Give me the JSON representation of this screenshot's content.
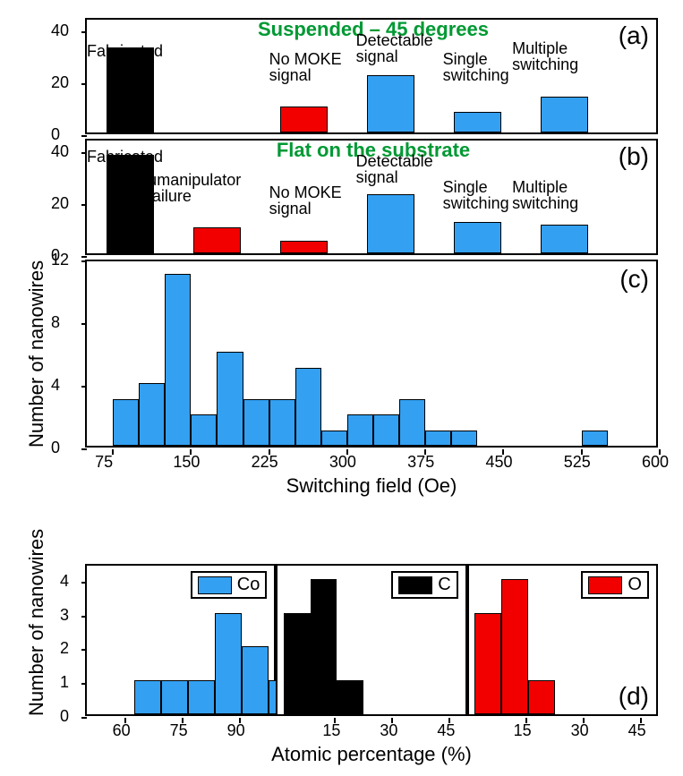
{
  "colors": {
    "blue": "#33a0f2",
    "black": "#000000",
    "red": "#f20000",
    "title_green": "#009933",
    "bg": "#ffffff"
  },
  "shared_ylabel": "Number of nanowires",
  "panel_a": {
    "title": "Suspended – 45 degrees",
    "letter": "(a)",
    "ylim": [
      0,
      45
    ],
    "yticks": [
      0,
      20,
      40
    ],
    "bars": [
      {
        "label": "Fabricated",
        "value": 33,
        "color": "black",
        "x": 1,
        "lx": 0.5,
        "ly": 36
      },
      {
        "label": "No MOKE\nsignal",
        "value": 10,
        "color": "red",
        "x": 3,
        "lx": 2.6,
        "ly": 33
      },
      {
        "label": "Detectable\nsignal",
        "value": 22,
        "color": "blue",
        "x": 4,
        "lx": 3.6,
        "ly": 40
      },
      {
        "label": "Single\nswitching",
        "value": 8,
        "color": "blue",
        "x": 5,
        "lx": 4.6,
        "ly": 33
      },
      {
        "label": "Multiple\nswitching",
        "value": 14,
        "color": "blue",
        "x": 6,
        "lx": 5.4,
        "ly": 37
      }
    ]
  },
  "panel_b": {
    "title": "Flat on the substrate",
    "letter": "(b)",
    "ylim": [
      0,
      45
    ],
    "yticks": [
      0,
      20,
      40
    ],
    "bars": [
      {
        "label": "Fabricated",
        "value": 38,
        "color": "black",
        "x": 1,
        "lx": 0.5,
        "ly": 42
      },
      {
        "label": "μmanipulator\nfailure",
        "value": 10,
        "color": "red",
        "x": 2,
        "lx": 1.2,
        "ly": 33
      },
      {
        "label": "No MOKE\nsignal",
        "value": 5,
        "color": "red",
        "x": 3,
        "lx": 2.6,
        "ly": 28
      },
      {
        "label": "Detectable\nsignal",
        "value": 23,
        "color": "blue",
        "x": 4,
        "lx": 3.6,
        "ly": 40
      },
      {
        "label": "Single\nswitching",
        "value": 12,
        "color": "blue",
        "x": 5,
        "lx": 4.6,
        "ly": 30
      },
      {
        "label": "Multiple\nswitching",
        "value": 11,
        "color": "blue",
        "x": 6,
        "lx": 5.4,
        "ly": 30
      }
    ]
  },
  "panel_c": {
    "letter": "(c)",
    "xlabel": "Switching field  (Oe)",
    "ylim": [
      0,
      12
    ],
    "yticks": [
      0,
      4,
      8,
      12
    ],
    "xlim": [
      50,
      600
    ],
    "xticks": [
      75,
      150,
      225,
      300,
      375,
      450,
      525,
      600
    ],
    "bin_width": 25,
    "bars": [
      {
        "x": 87.5,
        "value": 3
      },
      {
        "x": 112.5,
        "value": 4
      },
      {
        "x": 137.5,
        "value": 11
      },
      {
        "x": 162.5,
        "value": 2
      },
      {
        "x": 187.5,
        "value": 6
      },
      {
        "x": 212.5,
        "value": 3
      },
      {
        "x": 237.5,
        "value": 3
      },
      {
        "x": 262.5,
        "value": 5
      },
      {
        "x": 287.5,
        "value": 1
      },
      {
        "x": 312.5,
        "value": 2
      },
      {
        "x": 337.5,
        "value": 2
      },
      {
        "x": 362.5,
        "value": 3
      },
      {
        "x": 387.5,
        "value": 1
      },
      {
        "x": 412.5,
        "value": 1
      },
      {
        "x": 537.5,
        "value": 1
      }
    ]
  },
  "panel_d": {
    "letter": "(d)",
    "xlabel": "Atomic percentage (%)",
    "ylabel": "Number of nanowires",
    "ylim": [
      0,
      4.5
    ],
    "yticks": [
      0,
      1,
      2,
      3,
      4
    ],
    "subs": [
      {
        "legend": "Co",
        "color": "blue",
        "xlim": [
          50,
          100
        ],
        "xticks": [
          60,
          75,
          90
        ],
        "bin_width": 7,
        "bars": [
          {
            "x": 66,
            "value": 1
          },
          {
            "x": 73,
            "value": 1
          },
          {
            "x": 80,
            "value": 1
          },
          {
            "x": 87,
            "value": 3
          },
          {
            "x": 94,
            "value": 2
          },
          {
            "x": 101,
            "value": 1
          }
        ]
      },
      {
        "legend": "C",
        "color": "black",
        "xlim": [
          0,
          50
        ],
        "xticks": [
          15,
          30,
          45
        ],
        "bin_width": 7,
        "bars": [
          {
            "x": 5,
            "value": 3
          },
          {
            "x": 12,
            "value": 4
          },
          {
            "x": 19,
            "value": 1
          }
        ]
      },
      {
        "legend": "O",
        "color": "red",
        "xlim": [
          0,
          50
        ],
        "xticks": [
          15,
          30,
          45
        ],
        "bin_width": 7,
        "bars": [
          {
            "x": 5,
            "value": 3
          },
          {
            "x": 12,
            "value": 4
          },
          {
            "x": 19,
            "value": 1
          }
        ]
      }
    ]
  }
}
